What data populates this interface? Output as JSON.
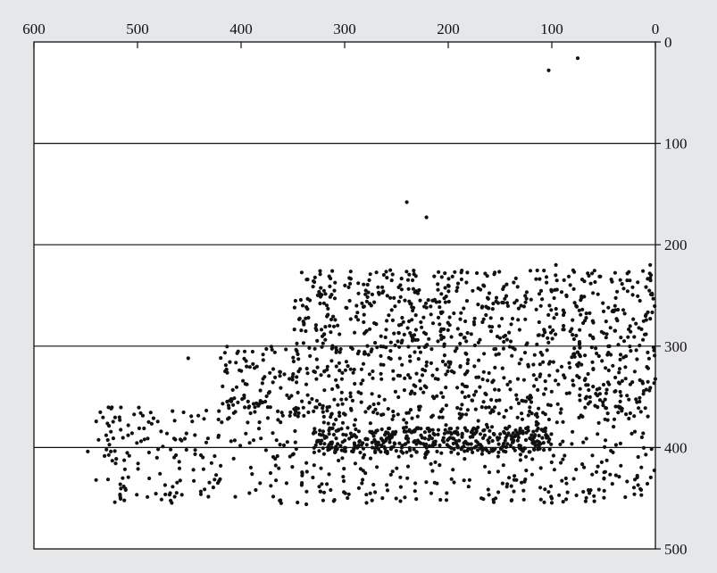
{
  "chart_data": {
    "type": "scatter",
    "title": "",
    "xlabel": "",
    "ylabel": "",
    "x_axis": {
      "position": "top",
      "reversed": true,
      "range": [
        0,
        600
      ],
      "ticks": [
        600,
        500,
        400,
        300,
        200,
        100,
        0
      ]
    },
    "y_axis": {
      "position": "right",
      "reversed": true,
      "range": [
        0,
        500
      ],
      "ticks": [
        0,
        100,
        200,
        300,
        400,
        500
      ]
    },
    "grid": {
      "horizontal_lines_at": [
        100,
        200,
        300,
        400
      ],
      "vertical": false
    },
    "marker_color": "#111111",
    "background_color": "#e6e7e9",
    "plot_background_color": "#ffffff",
    "isolated_points": [
      {
        "x": 103,
        "y": 28
      },
      {
        "x": 75,
        "y": 16
      },
      {
        "x": 240,
        "y": 158
      },
      {
        "x": 221,
        "y": 173
      },
      {
        "x": 548,
        "y": 404
      },
      {
        "x": 540,
        "y": 432
      },
      {
        "x": 530,
        "y": 402
      },
      {
        "x": 497,
        "y": 366
      },
      {
        "x": 468,
        "y": 402
      },
      {
        "x": 451,
        "y": 312
      },
      {
        "x": 392,
        "y": 445
      },
      {
        "x": 362,
        "y": 452
      },
      {
        "x": 337,
        "y": 456
      },
      {
        "x": 168,
        "y": 450
      },
      {
        "x": 93,
        "y": 447
      },
      {
        "x": 59,
        "y": 453
      },
      {
        "x": 5,
        "y": 220
      },
      {
        "x": 12,
        "y": 226
      },
      {
        "x": 96,
        "y": 220
      },
      {
        "x": 13,
        "y": 390
      }
    ],
    "dense_regions": [
      {
        "x_range": [
          0,
          350
        ],
        "y_range": [
          225,
          300
        ],
        "count": 520
      },
      {
        "x_range": [
          0,
          420
        ],
        "y_range": [
          300,
          370
        ],
        "count": 560
      },
      {
        "x_range": [
          0,
          540
        ],
        "y_range": [
          360,
          455
        ],
        "count": 520
      },
      {
        "x_range": [
          100,
          330
        ],
        "y_range": [
          380,
          405
        ],
        "count": 380
      }
    ]
  }
}
